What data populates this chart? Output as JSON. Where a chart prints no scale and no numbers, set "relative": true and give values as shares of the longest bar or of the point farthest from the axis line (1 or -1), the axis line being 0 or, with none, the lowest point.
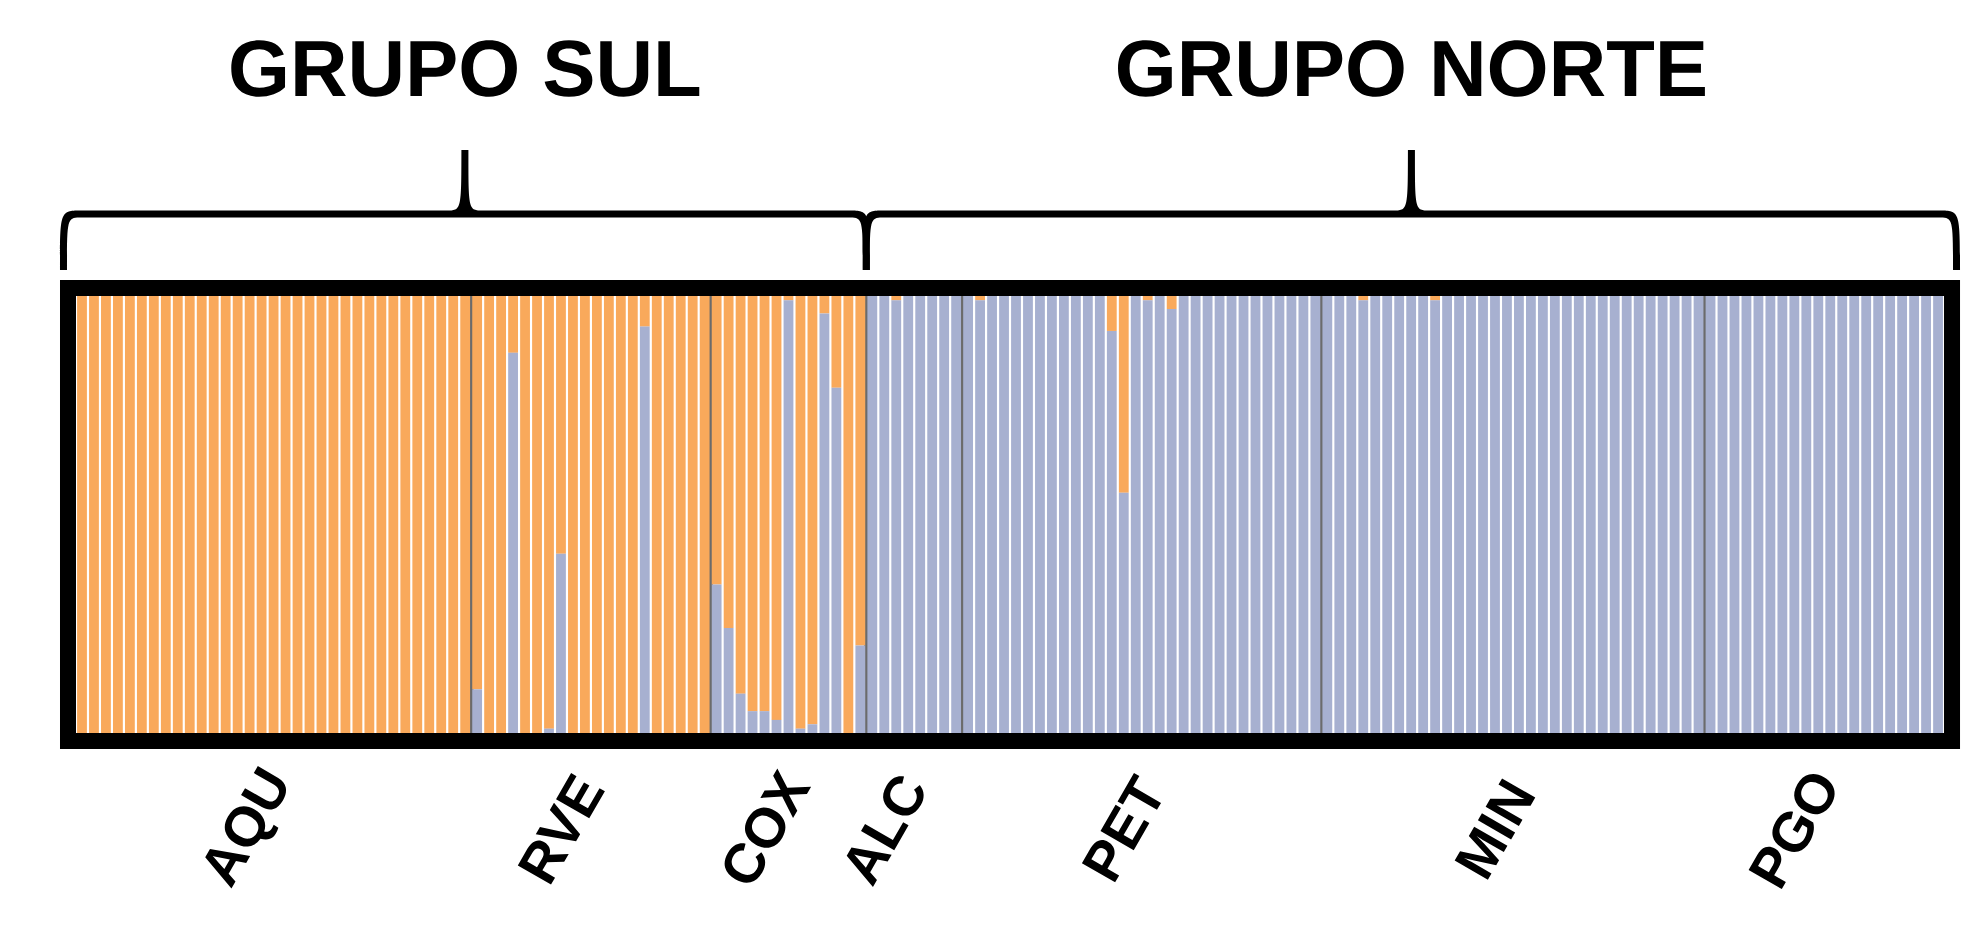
{
  "chart_data": {
    "type": "bar",
    "stacked": true,
    "relative": true,
    "tick_labels": "x",
    "annotations": [
      "GRUPO SUL",
      "GRUPO NORTE"
    ],
    "categories": [
      null,
      null,
      null,
      null,
      null,
      null,
      null,
      null,
      null,
      null,
      null,
      null,
      null,
      null,
      "AQU",
      null,
      null,
      null,
      null,
      null,
      null,
      null,
      null,
      null,
      null,
      null,
      null,
      null,
      null,
      null,
      null,
      null,
      null,
      null,
      null,
      null,
      null,
      null,
      null,
      null,
      "RVE",
      null,
      null,
      null,
      null,
      null,
      null,
      null,
      null,
      null,
      null,
      null,
      null,
      null,
      null,
      null,
      null,
      "COX",
      null,
      null,
      null,
      null,
      null,
      null,
      null,
      null,
      null,
      "ALC",
      null,
      null,
      null,
      null,
      null,
      null,
      null,
      null,
      null,
      null,
      null,
      null,
      null,
      null,
      null,
      null,
      null,
      null,
      null,
      "PET",
      null,
      null,
      null,
      null,
      null,
      null,
      null,
      null,
      null,
      null,
      null,
      null,
      null,
      null,
      null,
      null,
      null,
      null,
      null,
      null,
      null,
      null,
      null,
      null,
      null,
      null,
      null,
      null,
      null,
      null,
      "MIN",
      null,
      null,
      null,
      null,
      null,
      null,
      null,
      null,
      null,
      null,
      null,
      null,
      null,
      null,
      null,
      null,
      null,
      null,
      null,
      null,
      null,
      null,
      null,
      null,
      "PGO",
      null,
      null,
      null,
      null,
      null,
      null,
      null,
      null,
      null,
      null,
      null,
      null
    ],
    "series": [
      {
        "color": "#a7b0d0",
        "values": [
          0,
          0,
          0,
          0,
          0,
          0,
          0,
          0,
          0,
          0,
          0,
          0,
          0,
          0,
          0,
          0,
          0,
          0,
          0,
          0,
          0,
          0,
          0,
          0,
          0,
          0,
          0,
          0,
          0,
          0,
          0,
          0,
          0,
          0.1,
          0,
          0,
          0.87,
          0,
          0,
          0.01,
          0.41,
          0,
          0,
          0,
          0,
          0,
          0,
          0.93,
          0,
          0,
          0,
          0,
          0,
          0.34,
          0.24,
          0.09,
          0.05,
          0.05,
          0.03,
          0.99,
          0.01,
          0.02,
          0.96,
          0.79,
          0,
          0.2,
          1,
          1,
          0.99,
          1,
          1,
          1,
          1,
          1,
          1,
          0.99,
          1,
          1,
          1,
          1,
          1,
          1,
          1,
          1,
          1,
          1,
          0.92,
          0.55,
          1,
          0.99,
          1,
          0.97,
          1,
          1,
          1,
          1,
          1,
          1,
          1,
          1,
          1,
          1,
          1,
          1,
          1,
          1,
          1,
          0.99,
          1,
          1,
          1,
          1,
          1,
          0.99,
          1,
          1,
          1,
          1,
          1,
          1,
          1,
          1,
          1,
          1,
          1,
          1,
          1,
          1,
          1,
          1,
          1,
          1,
          1,
          1,
          1,
          1,
          1,
          1,
          1,
          1,
          1,
          1,
          1,
          1,
          1,
          1,
          1,
          1,
          1,
          1,
          1,
          1,
          1,
          1,
          1,
          1
        ]
      },
      {
        "color": "#f9a95b",
        "values": [
          1,
          1,
          1,
          1,
          1,
          1,
          1,
          1,
          1,
          1,
          1,
          1,
          1,
          1,
          1,
          1,
          1,
          1,
          1,
          1,
          1,
          1,
          1,
          1,
          1,
          1,
          1,
          1,
          1,
          1,
          1,
          1,
          1,
          0.9,
          1,
          1,
          0.13,
          1,
          1,
          0.99,
          0.59,
          1,
          1,
          1,
          1,
          1,
          1,
          0.07,
          1,
          1,
          1,
          1,
          1,
          0.66,
          0.76,
          0.91,
          0.95,
          0.95,
          0.97,
          0.01,
          0.99,
          0.98,
          0.04,
          0.21,
          1,
          0.8,
          0,
          0,
          0.01,
          0,
          0,
          0,
          0,
          0,
          0,
          0.01,
          0,
          0,
          0,
          0,
          0,
          0,
          0,
          0,
          0,
          0,
          0.08,
          0.45,
          0,
          0.01,
          0,
          0.03,
          0,
          0,
          0,
          0,
          0,
          0,
          0,
          0,
          0,
          0,
          0,
          0,
          0,
          0,
          0,
          0.01,
          0,
          0,
          0,
          0,
          0,
          0.01,
          0,
          0,
          0,
          0,
          0,
          0,
          0,
          0,
          0,
          0,
          0,
          0,
          0,
          0,
          0,
          0,
          0,
          0,
          0,
          0,
          0,
          0,
          0,
          0,
          0,
          0,
          0,
          0,
          0,
          0,
          0,
          0,
          0,
          0,
          0,
          0,
          0,
          0,
          0,
          0,
          0,
          0
        ]
      }
    ]
  }
}
